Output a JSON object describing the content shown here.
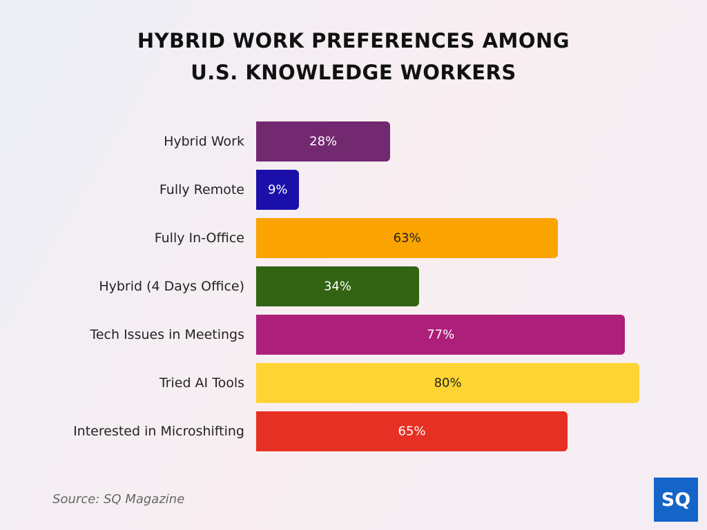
{
  "chart_data": {
    "type": "bar",
    "orientation": "horizontal",
    "title": "HYBRID WORK PREFERENCES AMONG U.S. KNOWLEDGE WORKERS",
    "categories": [
      "Hybrid Work",
      "Fully Remote",
      "Fully In-Office",
      "Hybrid (4 Days Office)",
      "Tech Issues in Meetings",
      "Tried AI Tools",
      "Interested in Microshifting"
    ],
    "values": [
      28,
      9,
      63,
      34,
      77,
      80,
      65
    ],
    "value_labels": [
      "28%",
      "9%",
      "63%",
      "34%",
      "77%",
      "80%",
      "65%"
    ],
    "colors": [
      "#72296f",
      "#1a0fa8",
      "#fba300",
      "#336414",
      "#ad1f7b",
      "#fed434",
      "#e63024"
    ],
    "source": "Source: SQ Magazine",
    "logo": "SQ"
  }
}
